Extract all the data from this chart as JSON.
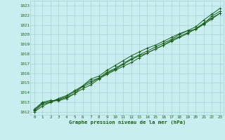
{
  "xlabel": "Graphe pression niveau de la mer (hPa)",
  "background_color": "#c8eef0",
  "grid_color": "#9ecdd0",
  "line_color": "#1a5e1a",
  "xlim": [
    -0.5,
    23.5
  ],
  "ylim": [
    1011.7,
    1023.5
  ],
  "yticks": [
    1012,
    1013,
    1014,
    1015,
    1016,
    1017,
    1018,
    1019,
    1020,
    1021,
    1022,
    1023
  ],
  "xticks": [
    0,
    1,
    2,
    3,
    4,
    5,
    6,
    7,
    8,
    9,
    10,
    11,
    12,
    13,
    14,
    15,
    16,
    17,
    18,
    19,
    20,
    21,
    22,
    23
  ],
  "lines": [
    [
      1012.2,
      1012.9,
      1013.1,
      1013.3,
      1013.6,
      1014.1,
      1014.6,
      1015.0,
      1015.5,
      1016.1,
      1016.5,
      1017.0,
      1017.5,
      1017.9,
      1018.3,
      1018.7,
      1019.1,
      1019.5,
      1020.0,
      1020.4,
      1020.5,
      1021.1,
      1021.9,
      1022.4
    ],
    [
      1012.1,
      1012.8,
      1013.0,
      1013.25,
      1013.5,
      1013.9,
      1014.4,
      1014.8,
      1015.4,
      1015.9,
      1016.3,
      1016.7,
      1017.1,
      1017.6,
      1018.1,
      1018.5,
      1018.9,
      1019.4,
      1019.8,
      1020.2,
      1020.6,
      1021.05,
      1021.6,
      1022.2
    ],
    [
      1012.3,
      1013.0,
      1013.2,
      1013.15,
      1013.4,
      1013.9,
      1014.7,
      1015.4,
      1015.7,
      1016.3,
      1016.8,
      1017.3,
      1017.8,
      1018.2,
      1018.6,
      1018.9,
      1019.3,
      1019.7,
      1020.1,
      1020.4,
      1020.8,
      1021.5,
      1022.1,
      1022.7
    ],
    [
      1012.0,
      1012.6,
      1013.0,
      1013.4,
      1013.7,
      1014.2,
      1014.7,
      1015.2,
      1015.5,
      1016.0,
      1016.4,
      1016.9,
      1017.4,
      1017.8,
      1018.1,
      1018.5,
      1018.9,
      1019.3,
      1019.7,
      1020.1,
      1020.6,
      1021.2,
      1021.7,
      1022.2
    ]
  ]
}
